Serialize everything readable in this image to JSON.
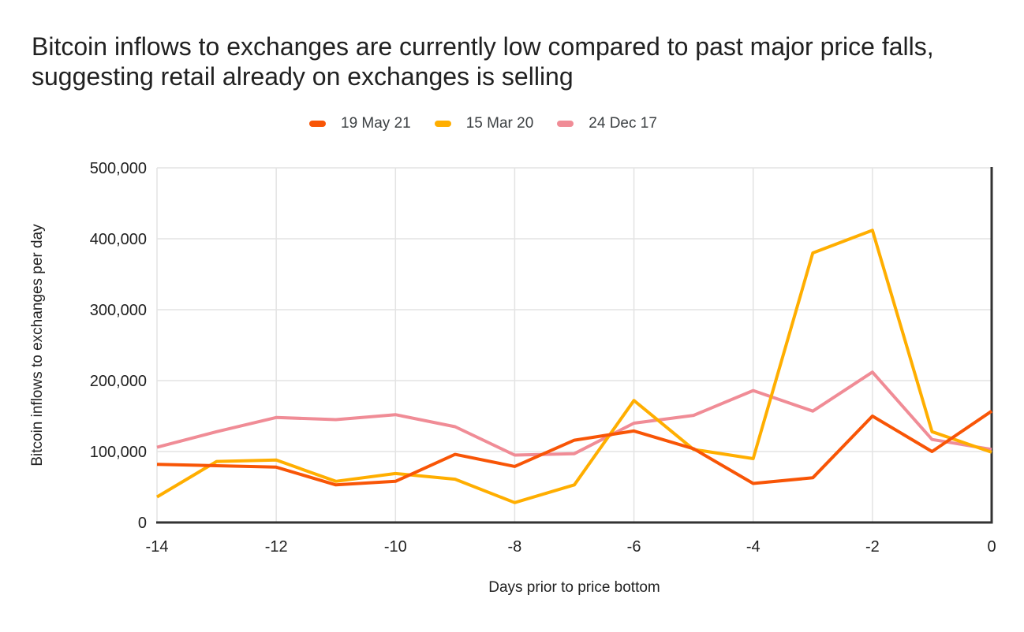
{
  "title": "Bitcoin inflows to exchanges are currently low compared to past major price falls, suggesting retail already on exchanges is selling",
  "style": {
    "background": "#ffffff",
    "title_color": "#212121",
    "tick_label_color": "#212121",
    "axis_title_color": "#212121",
    "legend_label_color": "#3C4043",
    "axis_color": "#333333",
    "grid_color": "#E3E3E3"
  },
  "chart_data": {
    "type": "line",
    "title": "Bitcoin inflows to exchanges are currently low compared to past major price falls, suggesting retail already on exchanges is selling",
    "xlabel": "Days prior to price bottom",
    "ylabel": "Bitcoin inflows to exchanges per day",
    "xlim": [
      -14,
      0
    ],
    "ylim": [
      0,
      500000
    ],
    "grid": true,
    "legend_position": "top",
    "x": [
      -14,
      -13,
      -12,
      -11,
      -10,
      -9,
      -8,
      -7,
      -6,
      -5,
      -4,
      -3,
      -2,
      -1,
      0
    ],
    "xticks": [
      {
        "v": -14,
        "label": "-14"
      },
      {
        "v": -12,
        "label": "-12"
      },
      {
        "v": -10,
        "label": "-10"
      },
      {
        "v": -8,
        "label": "-8"
      },
      {
        "v": -6,
        "label": "-6"
      },
      {
        "v": -4,
        "label": "-4"
      },
      {
        "v": -2,
        "label": "-2"
      },
      {
        "v": 0,
        "label": "0"
      }
    ],
    "yticks": [
      {
        "v": 0,
        "label": "0"
      },
      {
        "v": 100000,
        "label": "100,000"
      },
      {
        "v": 200000,
        "label": "200,000"
      },
      {
        "v": 300000,
        "label": "300,000"
      },
      {
        "v": 400000,
        "label": "400,000"
      },
      {
        "v": 500000,
        "label": "500,000"
      }
    ],
    "series": [
      {
        "name": "19 May 21",
        "color": "#F85506",
        "values": [
          82000,
          80000,
          78000,
          53000,
          58000,
          96000,
          79000,
          116000,
          129000,
          104000,
          55000,
          63000,
          150000,
          100000,
          157000
        ]
      },
      {
        "name": "15 Mar 20",
        "color": "#FFAE00",
        "values": [
          36000,
          86000,
          88000,
          58000,
          69000,
          61000,
          28000,
          53000,
          172000,
          103000,
          90000,
          380000,
          412000,
          128000,
          99000
        ]
      },
      {
        "name": "24 Dec 17",
        "color": "#F08C96",
        "values": [
          106000,
          128000,
          148000,
          145000,
          152000,
          135000,
          95000,
          97000,
          140000,
          151000,
          186000,
          157000,
          212000,
          117000,
          103000
        ]
      }
    ]
  }
}
